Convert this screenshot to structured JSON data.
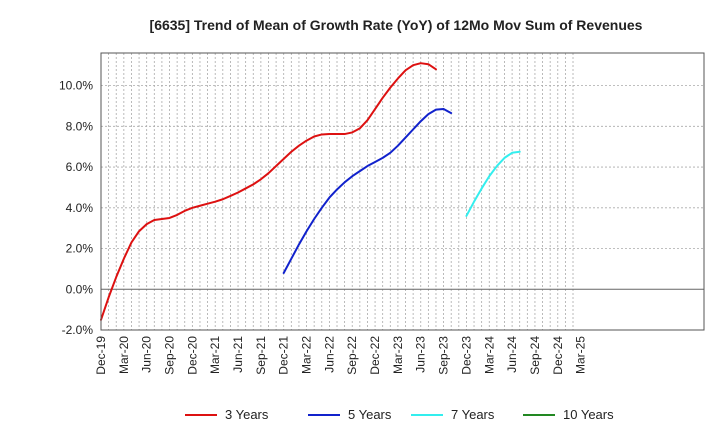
{
  "chart_data": {
    "type": "line",
    "title": "[6635]  Trend of Mean of Growth Rate (YoY) of 12Mo Mov Sum of Revenues",
    "xlabel": "",
    "ylabel": "",
    "ylim": [
      -2.0,
      11.6
    ],
    "yticks": [
      -2.0,
      0.0,
      2.0,
      4.0,
      6.0,
      8.0,
      10.0
    ],
    "ytick_labels": [
      "-2.0%",
      "0.0%",
      "2.0%",
      "4.0%",
      "6.0%",
      "8.0%",
      "10.0%"
    ],
    "xticks": [
      "Dec-19",
      "Mar-20",
      "Jun-20",
      "Sep-20",
      "Dec-20",
      "Mar-21",
      "Jun-21",
      "Sep-21",
      "Dec-21",
      "Mar-22",
      "Jun-22",
      "Sep-22",
      "Dec-22",
      "Mar-23",
      "Jun-23",
      "Sep-23",
      "Dec-23",
      "Mar-24",
      "Jun-24",
      "Sep-24",
      "Dec-24",
      "Mar-25"
    ],
    "grid": true,
    "legend_position": "bottom",
    "x_start_month_index": 0,
    "series": [
      {
        "name": "3 Years",
        "color": "#dd1111",
        "start_month": 0,
        "values": [
          -1.5,
          -0.4,
          0.6,
          1.5,
          2.3,
          2.85,
          3.2,
          3.4,
          3.45,
          3.5,
          3.65,
          3.85,
          4.0,
          4.1,
          4.2,
          4.3,
          4.42,
          4.58,
          4.75,
          4.95,
          5.15,
          5.4,
          5.7,
          6.05,
          6.4,
          6.75,
          7.05,
          7.3,
          7.5,
          7.6,
          7.62,
          7.62,
          7.62,
          7.7,
          7.9,
          8.3,
          8.85,
          9.4,
          9.9,
          10.35,
          10.75,
          11.0,
          11.1,
          11.05,
          10.8
        ]
      },
      {
        "name": "5 Years",
        "color": "#1122cc",
        "start_month": 24,
        "values": [
          0.8,
          1.5,
          2.2,
          2.85,
          3.45,
          4.0,
          4.5,
          4.9,
          5.25,
          5.55,
          5.8,
          6.05,
          6.25,
          6.45,
          6.7,
          7.05,
          7.45,
          7.85,
          8.25,
          8.6,
          8.82,
          8.85,
          8.65
        ]
      },
      {
        "name": "7 Years",
        "color": "#33eeee",
        "start_month": 48,
        "values": [
          3.6,
          4.3,
          4.95,
          5.55,
          6.05,
          6.45,
          6.7,
          6.75
        ]
      },
      {
        "name": "10 Years",
        "color": "#228822",
        "start_month": 0,
        "values": []
      }
    ]
  }
}
